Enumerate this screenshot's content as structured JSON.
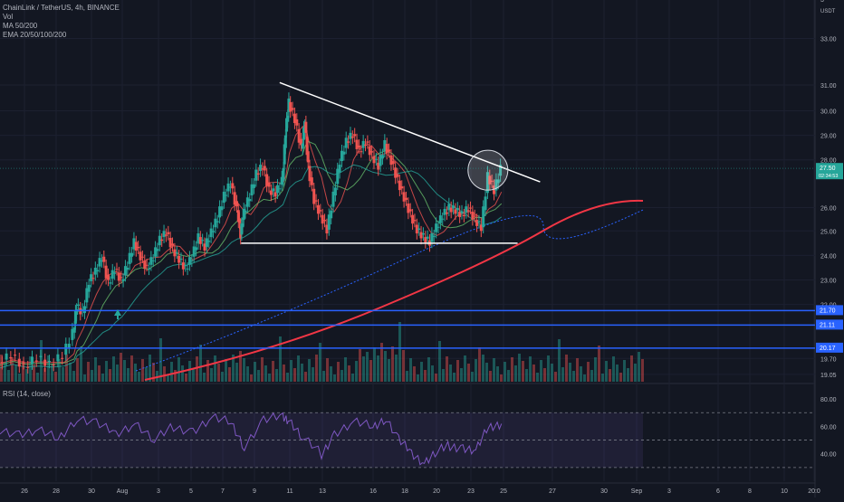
{
  "header": {
    "symbol_line": "ChainLink / TetherUS, 4h, BINANCE",
    "indicators": [
      "Vol",
      "MA 50/200",
      "EMA 20/50/100/200"
    ],
    "currency": "USDT"
  },
  "rsi": {
    "label": "RSI (14, close)",
    "axis_ticks": [
      "80.00",
      "60.00",
      "40.00"
    ],
    "upper_band": 70,
    "lower_band": 30
  },
  "colors": {
    "background": "#131722",
    "up": "#26a69a",
    "down": "#ef5350",
    "horizontal_level": "#2962ff",
    "rsi_line": "#7e57c2",
    "ema200": "#f23645",
    "trendline": "#ffffff"
  },
  "chart_data": {
    "type": "candlestick",
    "title": "ChainLink / TetherUS, 4h, BINANCE",
    "x_ticks": [
      "26",
      "28",
      "30",
      "Aug",
      "3",
      "5",
      "7",
      "9",
      "11",
      "13",
      "16",
      "18",
      "20",
      "23",
      "25",
      "27",
      "30",
      "Sep",
      "3",
      "6",
      "8",
      "10",
      "20:0"
    ],
    "y_ticks": [
      "3",
      "33.00",
      "31.00",
      "30.00",
      "29.00",
      "28.00",
      "26.00",
      "25.00",
      "24.00",
      "23.00",
      "22.00",
      "19.70",
      "19.05"
    ],
    "ylim": [
      18.8,
      34.0
    ],
    "price_labels": [
      {
        "text": "27.50",
        "sub": "02:34:53",
        "value": 27.5
      },
      {
        "text": "21.70",
        "value": 21.7
      },
      {
        "text": "21.11",
        "value": 21.11
      },
      {
        "text": "20.17",
        "value": 20.17
      }
    ],
    "support_levels": [
      21.7,
      21.11,
      20.17
    ],
    "trendlines": [
      {
        "name": "descending-resistance",
        "from": [
          0.435,
          31.0
        ],
        "to": [
          0.84,
          26.95
        ]
      },
      {
        "name": "horizontal-support",
        "from": [
          0.375,
          24.45
        ],
        "to": [
          0.805,
          24.45
        ]
      }
    ],
    "ohlc_path": [
      [
        0.0,
        19.6
      ],
      [
        0.02,
        19.9
      ],
      [
        0.04,
        19.4
      ],
      [
        0.06,
        19.8
      ],
      [
        0.08,
        19.5
      ],
      [
        0.1,
        19.9
      ],
      [
        0.115,
        20.8
      ],
      [
        0.12,
        21.9
      ],
      [
        0.13,
        21.6
      ],
      [
        0.14,
        22.9
      ],
      [
        0.15,
        23.3
      ],
      [
        0.16,
        23.9
      ],
      [
        0.17,
        22.8
      ],
      [
        0.18,
        23.4
      ],
      [
        0.19,
        22.9
      ],
      [
        0.2,
        23.6
      ],
      [
        0.21,
        24.5
      ],
      [
        0.22,
        23.9
      ],
      [
        0.23,
        23.4
      ],
      [
        0.24,
        23.9
      ],
      [
        0.25,
        24.6
      ],
      [
        0.26,
        24.9
      ],
      [
        0.27,
        24.2
      ],
      [
        0.28,
        23.8
      ],
      [
        0.29,
        23.4
      ],
      [
        0.3,
        23.9
      ],
      [
        0.31,
        24.7
      ],
      [
        0.32,
        24.3
      ],
      [
        0.33,
        24.9
      ],
      [
        0.34,
        25.5
      ],
      [
        0.35,
        26.4
      ],
      [
        0.36,
        26.9
      ],
      [
        0.37,
        25.8
      ],
      [
        0.375,
        24.8
      ],
      [
        0.38,
        25.7
      ],
      [
        0.39,
        26.4
      ],
      [
        0.4,
        27.3
      ],
      [
        0.41,
        27.6
      ],
      [
        0.42,
        26.6
      ],
      [
        0.43,
        26.5
      ],
      [
        0.44,
        27.0
      ],
      [
        0.445,
        29.0
      ],
      [
        0.45,
        30.2
      ],
      [
        0.46,
        29.5
      ],
      [
        0.47,
        28.3
      ],
      [
        0.475,
        29.4
      ],
      [
        0.48,
        27.6
      ],
      [
        0.49,
        26.2
      ],
      [
        0.5,
        25.6
      ],
      [
        0.51,
        25.0
      ],
      [
        0.52,
        26.4
      ],
      [
        0.53,
        27.8
      ],
      [
        0.54,
        28.6
      ],
      [
        0.55,
        28.9
      ],
      [
        0.56,
        28.2
      ],
      [
        0.57,
        28.6
      ],
      [
        0.58,
        28.0
      ],
      [
        0.59,
        27.6
      ],
      [
        0.6,
        28.5
      ],
      [
        0.61,
        27.8
      ],
      [
        0.62,
        27.0
      ],
      [
        0.63,
        26.3
      ],
      [
        0.64,
        25.6
      ],
      [
        0.65,
        25.0
      ],
      [
        0.66,
        24.7
      ],
      [
        0.67,
        24.5
      ],
      [
        0.68,
        25.1
      ],
      [
        0.69,
        25.6
      ],
      [
        0.7,
        25.9
      ],
      [
        0.71,
        25.8
      ],
      [
        0.72,
        25.6
      ],
      [
        0.73,
        25.9
      ],
      [
        0.74,
        25.4
      ],
      [
        0.75,
        25.1
      ],
      [
        0.76,
        27.2
      ],
      [
        0.77,
        26.6
      ],
      [
        0.78,
        27.5
      ]
    ],
    "rsi_path": [
      [
        0.0,
        58
      ],
      [
        0.03,
        54
      ],
      [
        0.06,
        57
      ],
      [
        0.09,
        51
      ],
      [
        0.12,
        66
      ],
      [
        0.15,
        62
      ],
      [
        0.18,
        55
      ],
      [
        0.21,
        62
      ],
      [
        0.24,
        50
      ],
      [
        0.27,
        60
      ],
      [
        0.3,
        56
      ],
      [
        0.33,
        66
      ],
      [
        0.36,
        63
      ],
      [
        0.38,
        45
      ],
      [
        0.41,
        64
      ],
      [
        0.44,
        68
      ],
      [
        0.45,
        64
      ],
      [
        0.47,
        52
      ],
      [
        0.5,
        40
      ],
      [
        0.52,
        54
      ],
      [
        0.55,
        63
      ],
      [
        0.58,
        60
      ],
      [
        0.6,
        66
      ],
      [
        0.62,
        50
      ],
      [
        0.64,
        41
      ],
      [
        0.66,
        33
      ],
      [
        0.68,
        42
      ],
      [
        0.7,
        46
      ],
      [
        0.72,
        44
      ],
      [
        0.74,
        42
      ],
      [
        0.76,
        60
      ],
      [
        0.78,
        62
      ]
    ]
  }
}
